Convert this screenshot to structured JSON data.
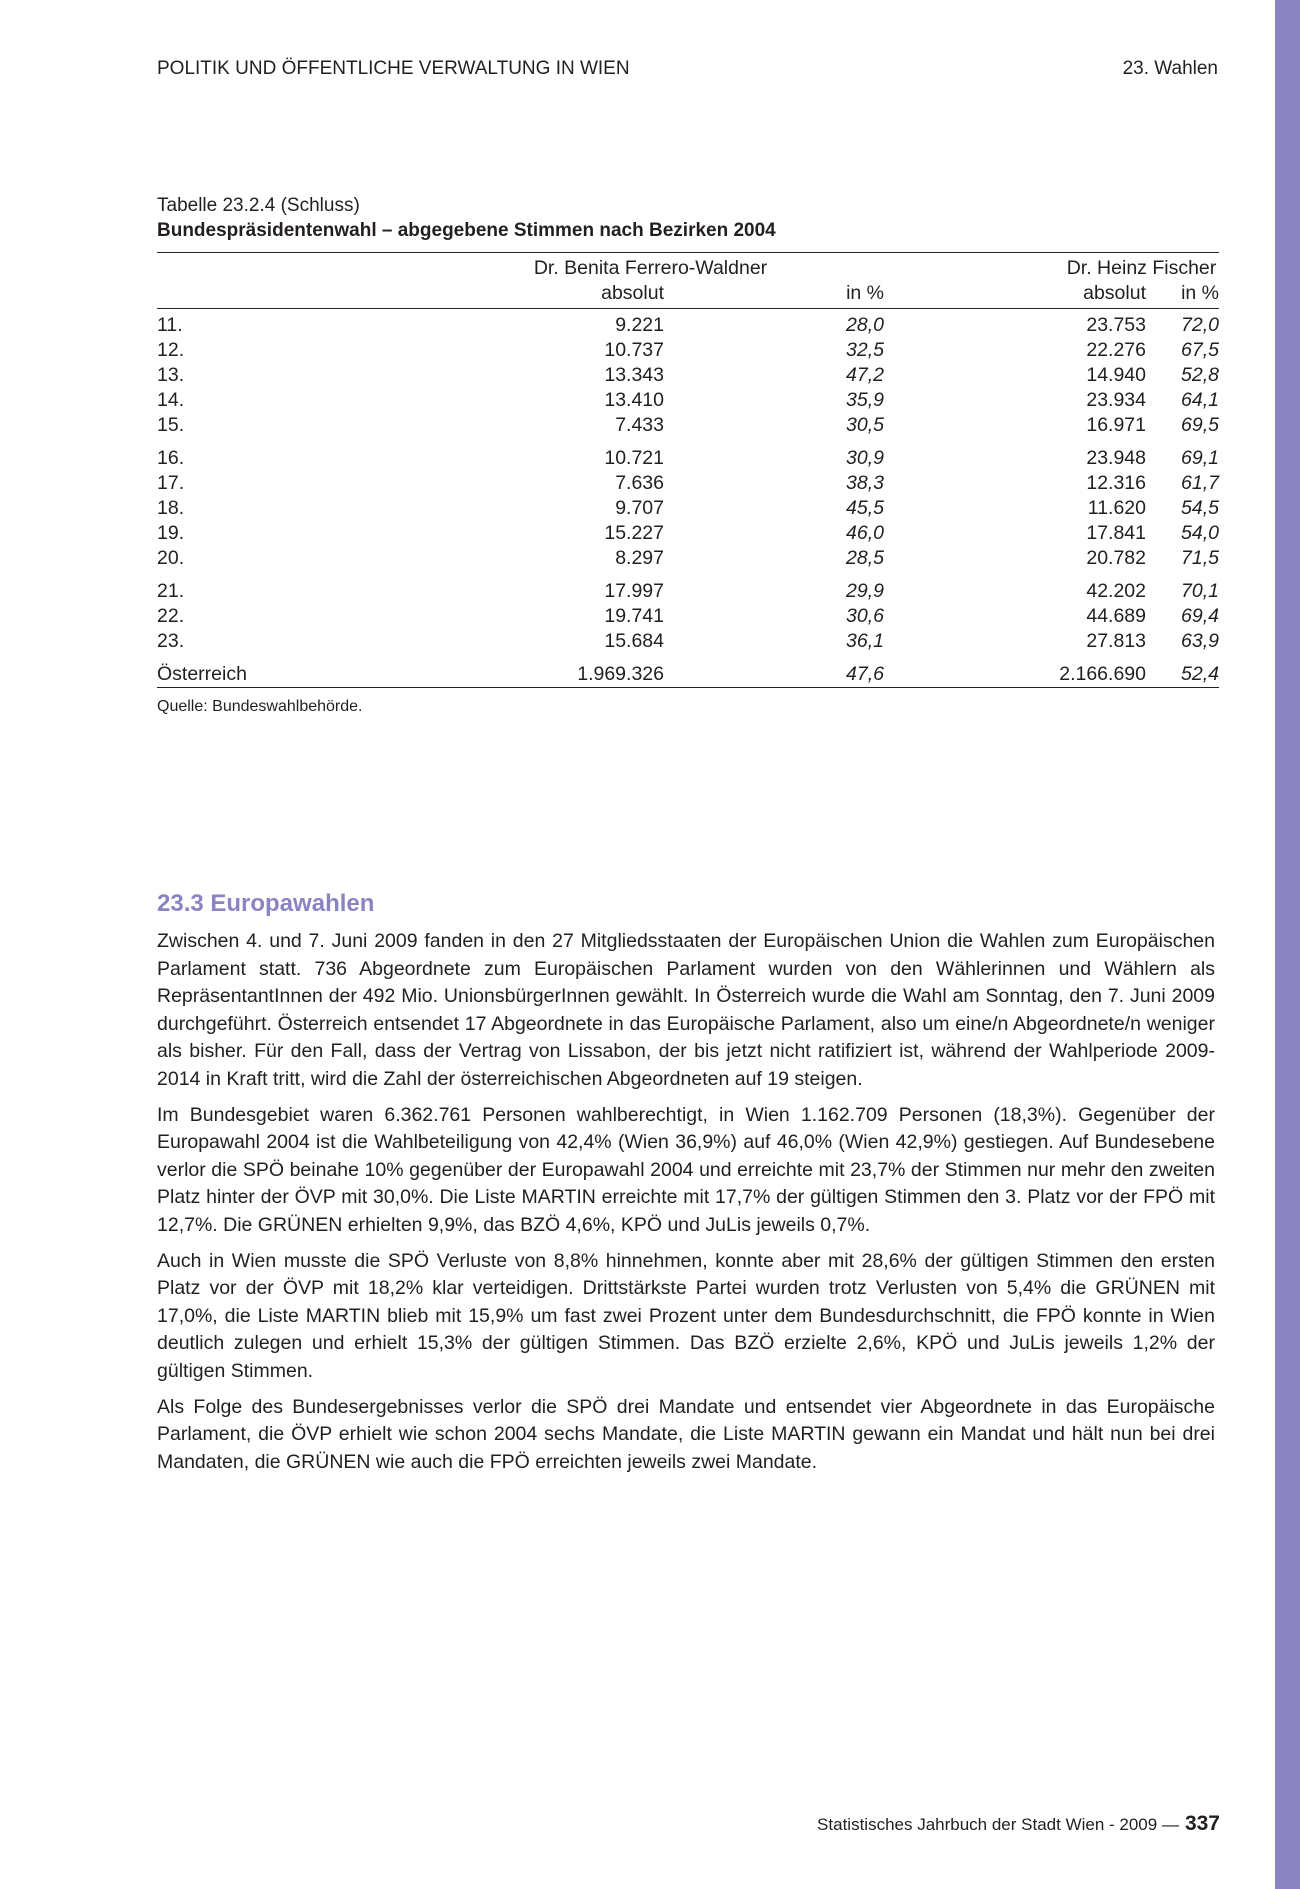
{
  "header": {
    "left": "POLITIK UND ÖFFENTLICHE VERWALTUNG IN WIEN",
    "right": "23. Wahlen"
  },
  "table": {
    "caption": "Tabelle 23.2.4 (Schluss)",
    "title": "Bundespräsidentenwahl – abgegebene Stimmen nach Bezirken 2004",
    "candidates": [
      "Dr. Benita Ferrero-Waldner",
      "Dr. Heinz Fischer"
    ],
    "subheaders": [
      "absolut",
      "in %",
      "absolut",
      "in %"
    ],
    "rows": [
      [
        "11.",
        "9.221",
        "28,0",
        "23.753",
        "72,0"
      ],
      [
        "12.",
        "10.737",
        "32,5",
        "22.276",
        "67,5"
      ],
      [
        "13.",
        "13.343",
        "47,2",
        "14.940",
        "52,8"
      ],
      [
        "14.",
        "13.410",
        "35,9",
        "23.934",
        "64,1"
      ],
      [
        "15.",
        "7.433",
        "30,5",
        "16.971",
        "69,5"
      ],
      [
        "16.",
        "10.721",
        "30,9",
        "23.948",
        "69,1"
      ],
      [
        "17.",
        "7.636",
        "38,3",
        "12.316",
        "61,7"
      ],
      [
        "18.",
        "9.707",
        "45,5",
        "11.620",
        "54,5"
      ],
      [
        "19.",
        "15.227",
        "46,0",
        "17.841",
        "54,0"
      ],
      [
        "20.",
        "8.297",
        "28,5",
        "20.782",
        "71,5"
      ],
      [
        "21.",
        "17.997",
        "29,9",
        "42.202",
        "70,1"
      ],
      [
        "22.",
        "19.741",
        "30,6",
        "44.689",
        "69,4"
      ],
      [
        "23.",
        "15.684",
        "36,1",
        "27.813",
        "63,9"
      ],
      [
        "Österreich",
        "1.969.326",
        "47,6",
        "2.166.690",
        "52,4"
      ]
    ],
    "source": "Quelle: Bundeswahlbehörde."
  },
  "section": {
    "heading": "23.3 Europawahlen",
    "paragraphs": [
      "Zwischen 4. und 7. Juni 2009 fanden in den 27 Mitgliedsstaaten der Europäischen Union die Wahlen zum Europäischen Parlament statt. 736 Abgeordnete zum Europäischen Parlament wurden von den Wählerinnen und Wählern als RepräsentantInnen der 492 Mio. UnionsbürgerInnen gewählt. In Österreich wurde die Wahl am Sonntag, den 7. Juni 2009 durchgeführt. Österreich entsendet 17 Abgeordnete in das Europäische Parlament, also um eine/n Abgeordnete/n weniger als bisher. Für den Fall, dass der Vertrag von Lissabon, der bis jetzt nicht ratifiziert ist, während der Wahlperiode 2009-2014 in Kraft tritt, wird die Zahl der österreichischen Abgeordneten auf 19 steigen.",
      "Im Bundesgebiet waren 6.362.761 Personen wahlberechtigt, in Wien 1.162.709 Personen (18,3%). Gegenüber der Europawahl 2004 ist die Wahlbeteiligung von 42,4% (Wien 36,9%) auf 46,0% (Wien 42,9%) gestiegen. Auf Bundesebene verlor die SPÖ beinahe 10% gegenüber der Europawahl 2004 und erreichte mit 23,7% der Stimmen nur mehr den zweiten Platz hinter der ÖVP mit 30,0%. Die Liste MARTIN erreichte mit 17,7% der gültigen Stimmen den 3. Platz vor der FPÖ mit 12,7%. Die GRÜNEN erhielten 9,9%, das BZÖ 4,6%, KPÖ und JuLis jeweils 0,7%.",
      "Auch in Wien musste die SPÖ Verluste von 8,8% hinnehmen, konnte aber mit 28,6% der gültigen Stimmen den ersten Platz vor der ÖVP mit 18,2% klar verteidigen. Drittstärkste Partei wurden trotz Verlusten von 5,4% die GRÜNEN mit 17,0%, die Liste MARTIN blieb mit 15,9% um fast zwei Prozent unter dem Bundesdurchschnitt, die FPÖ konnte in Wien deutlich zulegen und erhielt 15,3% der gültigen Stimmen. Das BZÖ erzielte 2,6%, KPÖ und JuLis jeweils 1,2% der gültigen Stimmen.",
      "Als Folge des Bundesergebnisses verlor die SPÖ drei Mandate und entsendet vier Abgeordnete in das Europäische Parlament, die ÖVP erhielt wie schon 2004 sechs Mandate, die Liste MARTIN gewann ein Mandat und hält nun bei drei Mandaten, die GRÜNEN wie auch die FPÖ erreichten jeweils zwei Mandate."
    ]
  },
  "footer": {
    "text": "Statistisches Jahrbuch der Stadt Wien - 2009  —",
    "page": "337"
  },
  "colors": {
    "accent": "#8a84c0"
  }
}
